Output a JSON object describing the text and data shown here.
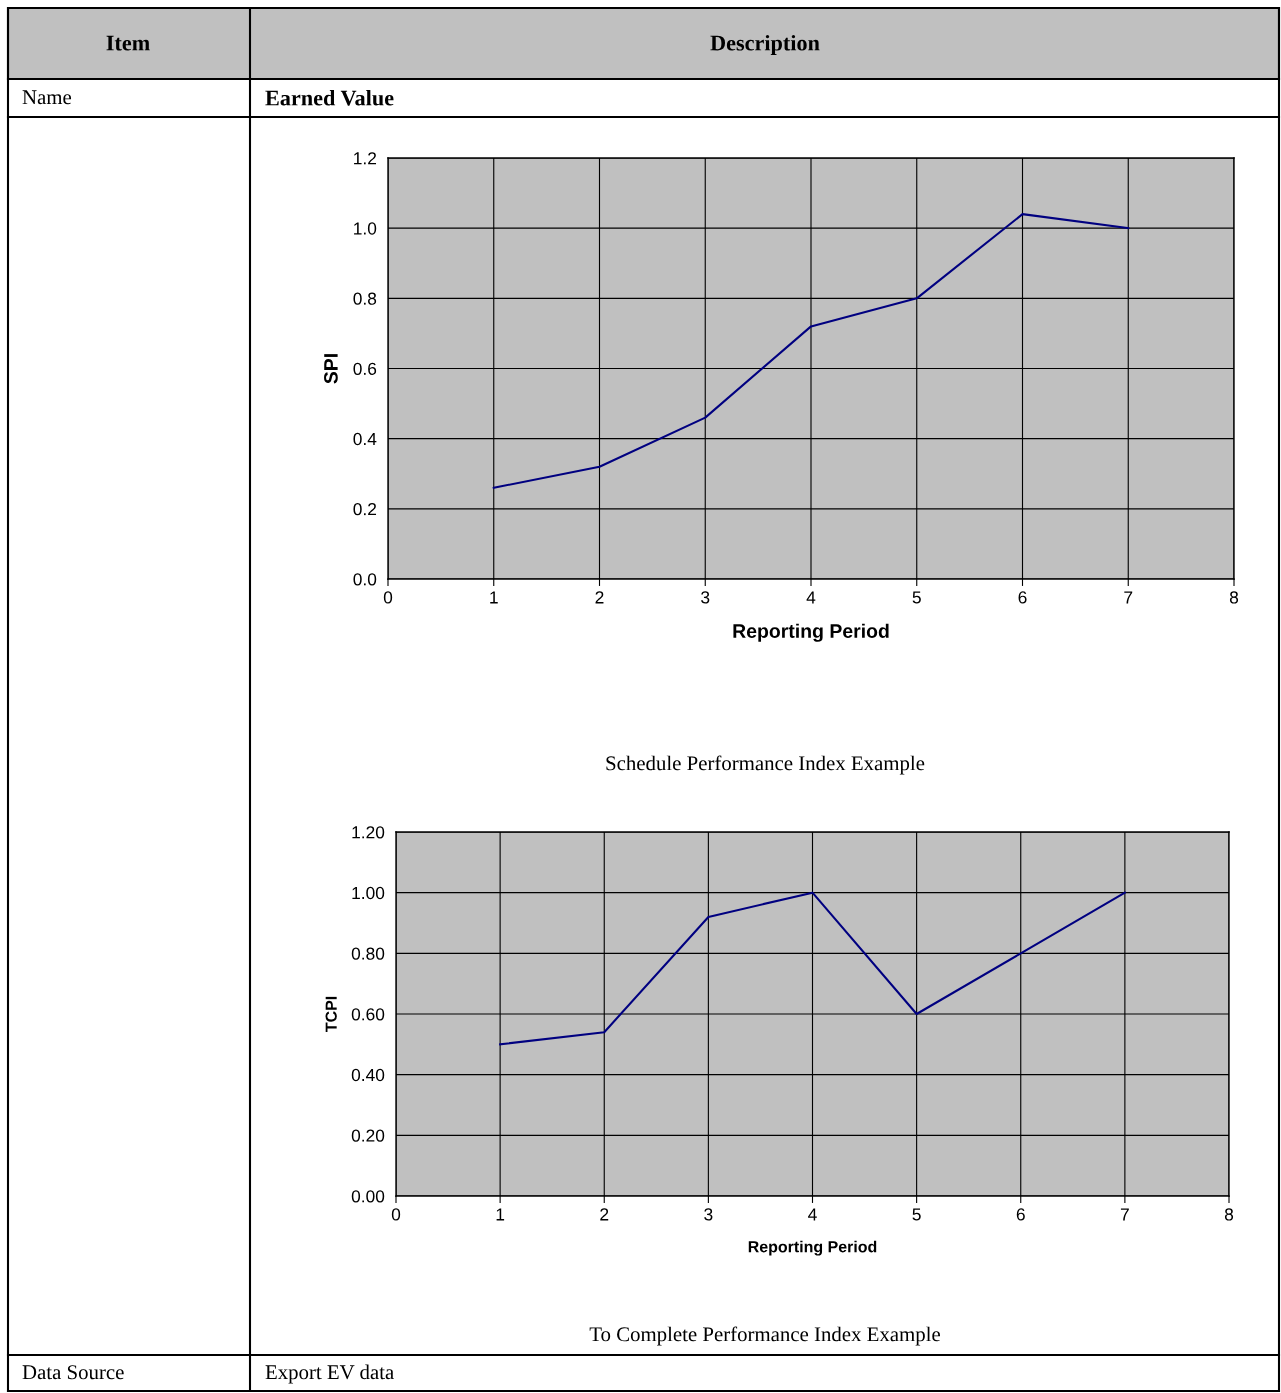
{
  "chart_data": [
    {
      "type": "line",
      "xlabel": "Reporting Period",
      "ylabel": "SPI",
      "x": [
        1,
        2,
        3,
        4,
        5,
        6,
        7
      ],
      "series": [
        {
          "color": "#000080",
          "values": [
            0.26,
            0.32,
            0.46,
            0.72,
            0.8,
            1.04,
            1.0
          ]
        }
      ],
      "xlim": [
        0,
        8
      ],
      "xticks": [
        0,
        1,
        2,
        3,
        4,
        5,
        6,
        7,
        8
      ],
      "ylim": [
        0,
        1.2
      ],
      "yticks": [
        {
          "value": 0,
          "label": "0.0"
        },
        {
          "value": 0.2,
          "label": "0.2"
        },
        {
          "value": 0.4,
          "label": "0.4"
        },
        {
          "value": 0.6,
          "label": "0.6"
        },
        {
          "value": 0.8,
          "label": "0.8"
        },
        {
          "value": 1.0,
          "label": "1.0"
        },
        {
          "value": 1.2,
          "label": "1.2"
        }
      ],
      "grid": true,
      "legend": false,
      "marker": "none",
      "line_style": "solid",
      "annotations": [
        "Item",
        "Description",
        "Name",
        "Earned Value",
        "Schedule Performance Index Example"
      ]
    },
    {
      "type": "line",
      "xlabel": "Reporting Period",
      "ylabel": "TCPI",
      "x": [
        1,
        2,
        3,
        4,
        5,
        6,
        7
      ],
      "series": [
        {
          "color": "#000080",
          "values": [
            0.5,
            0.54,
            0.92,
            1.0,
            0.6,
            0.8,
            1.0
          ]
        }
      ],
      "xlim": [
        0,
        8
      ],
      "xticks": [
        0,
        1,
        2,
        3,
        4,
        5,
        6,
        7,
        8
      ],
      "ylim": [
        0,
        1.2
      ],
      "yticks": [
        {
          "value": 0,
          "label": "0.00"
        },
        {
          "value": 0.2,
          "label": "0.20"
        },
        {
          "value": 0.4,
          "label": "0.40"
        },
        {
          "value": 0.6,
          "label": "0.60"
        },
        {
          "value": 0.8,
          "label": "0.80"
        },
        {
          "value": 1.0,
          "label": "1.00"
        },
        {
          "value": 1.2,
          "label": "1.20"
        }
      ],
      "grid": true,
      "legend": false,
      "marker": "none",
      "line_style": "solid",
      "annotations": [
        "To Complete Performance Index Example",
        "Data Source",
        "Export EV data"
      ]
    }
  ]
}
